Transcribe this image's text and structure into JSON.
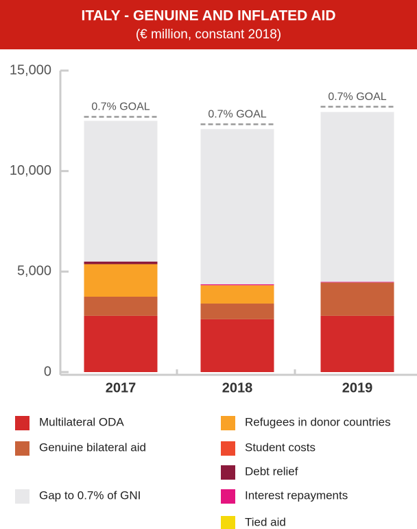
{
  "chart_data": {
    "type": "stacked_bar",
    "title": "ITALY - GENUINE AND INFLATED AID",
    "subtitle": "(€ million, constant 2018)",
    "categories": [
      "2017",
      "2018",
      "2019"
    ],
    "series": [
      {
        "name": "Multilateral ODA",
        "color": "#d42a2a",
        "values": [
          2800,
          2630,
          2800
        ]
      },
      {
        "name": "Genuine bilateral aid",
        "color": "#c8623a",
        "values": [
          950,
          780,
          1660
        ]
      },
      {
        "name": "Refugees in donor countries",
        "color": "#f9a227",
        "values": [
          1620,
          910,
          0
        ]
      },
      {
        "name": "Student costs",
        "color": "#ef4a2e",
        "values": [
          0,
          0,
          0
        ]
      },
      {
        "name": "Debt relief",
        "color": "#8c1a3c",
        "values": [
          130,
          0,
          0
        ]
      },
      {
        "name": "Interest repayments",
        "color": "#e4147f",
        "values": [
          0,
          50,
          30
        ]
      },
      {
        "name": "Tied aid",
        "color": "#f5d90a",
        "values": [
          0,
          0,
          0
        ]
      },
      {
        "name": "Gap to 0.7% of GNI",
        "color": "#e8e8ea",
        "values": [
          7000,
          7720,
          8450
        ]
      }
    ],
    "goals": [
      {
        "label": "0.7% GOAL",
        "value": 12700
      },
      {
        "label": "0.7% GOAL",
        "value": 12330
      },
      {
        "label": "0.7% GOAL",
        "value": 13200
      }
    ],
    "ylim": [
      0,
      15000
    ],
    "yticks": [
      0,
      {
        "value": 5000,
        "label": "5,000"
      },
      {
        "value": 10000,
        "label": "10,000"
      },
      {
        "value": 15000,
        "label": "15,000"
      }
    ]
  }
}
